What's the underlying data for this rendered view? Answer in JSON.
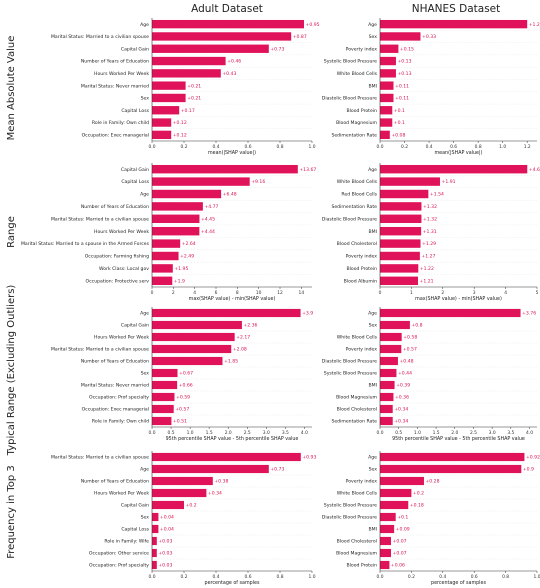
{
  "col_titles": [
    "Adult Dataset",
    "NHANES Dataset"
  ],
  "row_titles": [
    "Mean Absolute Value",
    "Range",
    "Typical Range (Excluding Outliers)",
    "Frequency in Top 3"
  ],
  "colors": {
    "bar": "#e0125a",
    "value_text": "#d8134f",
    "grid": "#e8e8e8"
  },
  "chart_data": [
    {
      "type": "bar",
      "orientation": "horizontal",
      "dataset": "Adult Dataset",
      "metric": "Mean Absolute Value",
      "categories": [
        "Age",
        "Marital Status: Married to a civilian spouse",
        "Capital Gain",
        "Number of Years of Education",
        "Hours Worked Per Week",
        "Marital Status: Never married",
        "Sex",
        "Capital Loss",
        "Role in Family: Own child",
        "Occupation: Exec managerial"
      ],
      "values": [
        0.95,
        0.87,
        0.73,
        0.46,
        0.43,
        0.21,
        0.21,
        0.17,
        0.12,
        0.12
      ],
      "value_labels": [
        "+0.95",
        "+0.87",
        "+0.73",
        "+0.46",
        "+0.43",
        "+0.21",
        "+0.21",
        "+0.17",
        "+0.12",
        "+0.12"
      ],
      "xlabel": "mean(|SHAP value|)",
      "xlim": [
        0,
        1.0
      ],
      "xticks": [
        0.0,
        0.2,
        0.4,
        0.6,
        0.8,
        1.0
      ],
      "xtick_labels": [
        "0.0",
        "0.2",
        "0.4",
        "0.6",
        "0.8",
        "1.0"
      ]
    },
    {
      "type": "bar",
      "orientation": "horizontal",
      "dataset": "NHANES Dataset",
      "metric": "Mean Absolute Value",
      "categories": [
        "Age",
        "Sex",
        "Poverty index",
        "Systolic Blood Pressure",
        "White Blood Cells",
        "BMI",
        "Diastolic Blood Pressure",
        "Blood Protein",
        "Blood Magnesium",
        "Sedimentation Rate"
      ],
      "values": [
        1.2,
        0.33,
        0.15,
        0.13,
        0.13,
        0.11,
        0.11,
        0.1,
        0.1,
        0.08
      ],
      "value_labels": [
        "+1.2",
        "+0.33",
        "+0.15",
        "+0.13",
        "+0.13",
        "+0.11",
        "+0.11",
        "+0.1",
        "+0.1",
        "+0.08"
      ],
      "xlabel": "mean(|SHAP value|)",
      "xlim": [
        0,
        1.28
      ],
      "xticks": [
        0.0,
        0.2,
        0.4,
        0.6,
        0.8,
        1.0,
        1.2
      ],
      "xtick_labels": [
        "0.0",
        "0.2",
        "0.4",
        "0.6",
        "0.8",
        "1.0",
        "1.2"
      ]
    },
    {
      "type": "bar",
      "orientation": "horizontal",
      "dataset": "Adult Dataset",
      "metric": "Range",
      "categories": [
        "Capital Gain",
        "Capital Loss",
        "Age",
        "Number of Years of Education",
        "Marital Status: Married to a civilian spouse",
        "Hours Worked Per Week",
        "Marital Status: Married to a spouse in the Armed Forces",
        "Occupation: Farming fishing",
        "Work Class: Local gov",
        "Occupation: Protective serv"
      ],
      "values": [
        13.67,
        9.16,
        6.48,
        4.77,
        4.45,
        4.44,
        2.64,
        2.49,
        1.95,
        1.9
      ],
      "value_labels": [
        "+13.67",
        "+9.16",
        "+6.48",
        "+4.77",
        "+4.45",
        "+4.44",
        "+2.64",
        "+2.49",
        "+1.95",
        "+1.9"
      ],
      "xlabel": "max(SHAP value) - min(SHAP value)",
      "xlim": [
        0,
        15
      ],
      "xticks": [
        0,
        2,
        4,
        6,
        8,
        10,
        12,
        14
      ],
      "xtick_labels": [
        "0",
        "2",
        "4",
        "6",
        "8",
        "10",
        "12",
        "14"
      ]
    },
    {
      "type": "bar",
      "orientation": "horizontal",
      "dataset": "NHANES Dataset",
      "metric": "Range",
      "categories": [
        "Age",
        "White Blood Cells",
        "Red Blood Cells",
        "Sedimentation Rate",
        "Diastolic Blood Pressure",
        "BMI",
        "Blood Cholesterol",
        "Poverty index",
        "Blood Protein",
        "Blood Albumin"
      ],
      "values": [
        4.69,
        1.91,
        1.54,
        1.32,
        1.32,
        1.31,
        1.29,
        1.27,
        1.22,
        1.21
      ],
      "value_labels": [
        "+4.69",
        "+1.91",
        "+1.54",
        "+1.32",
        "+1.32",
        "+1.31",
        "+1.29",
        "+1.27",
        "+1.22",
        "+1.21"
      ],
      "xlabel": "max(SHAP value) - min(SHAP value)",
      "xlim": [
        0,
        5
      ],
      "xticks": [
        0,
        1,
        2,
        3,
        4,
        5
      ],
      "xtick_labels": [
        "0",
        "1",
        "2",
        "3",
        "4",
        "5"
      ]
    },
    {
      "type": "bar",
      "orientation": "horizontal",
      "dataset": "Adult Dataset",
      "metric": "Typical Range (Excluding Outliers)",
      "categories": [
        "Age",
        "Capital Gain",
        "Hours Worked Per Week",
        "Marital Status: Married to a civilian spouse",
        "Number of Years of Education",
        "Sex",
        "Marital Status: Never married",
        "Occupation: Prof specialty",
        "Occupation: Exec managerial",
        "Role in Family: Own child"
      ],
      "values": [
        3.9,
        2.36,
        2.17,
        2.08,
        1.85,
        0.67,
        0.66,
        0.59,
        0.57,
        0.51
      ],
      "value_labels": [
        "+3.9",
        "+2.36",
        "+2.17",
        "+2.08",
        "+1.85",
        "+0.67",
        "+0.66",
        "+0.59",
        "+0.57",
        "+0.51"
      ],
      "xlabel": "95th percentile SHAP value - 5th percentile SHAP value",
      "xlim": [
        0,
        4.2
      ],
      "xticks": [
        0.0,
        0.5,
        1.0,
        1.5,
        2.0,
        2.5,
        3.0,
        3.5,
        4.0
      ],
      "xtick_labels": [
        "0.0",
        "0.5",
        "1.0",
        "1.5",
        "2.0",
        "2.5",
        "3.0",
        "3.5",
        "4.0"
      ]
    },
    {
      "type": "bar",
      "orientation": "horizontal",
      "dataset": "NHANES Dataset",
      "metric": "Typical Range (Excluding Outliers)",
      "categories": [
        "Age",
        "Sex",
        "White Blood Cells",
        "Poverty index",
        "Diastolic Blood Pressure",
        "Systolic Blood Pressure",
        "BMI",
        "Blood Magnesium",
        "Blood Cholesterol",
        "Sedimentation Rate"
      ],
      "values": [
        3.76,
        0.8,
        0.58,
        0.57,
        0.48,
        0.44,
        0.39,
        0.36,
        0.34,
        0.34
      ],
      "value_labels": [
        "+3.76",
        "+0.8",
        "+0.58",
        "+0.57",
        "+0.48",
        "+0.44",
        "+0.39",
        "+0.36",
        "+0.34",
        "+0.34"
      ],
      "xlabel": "95th percentile SHAP value - 5th percentile SHAP value",
      "xlim": [
        0,
        4.2
      ],
      "xticks": [
        0.0,
        0.5,
        1.0,
        1.5,
        2.0,
        2.5,
        3.0,
        3.5,
        4.0
      ],
      "xtick_labels": [
        "0.0",
        "0.5",
        "1.0",
        "1.5",
        "2.0",
        "2.5",
        "3.0",
        "3.5",
        "4.0"
      ]
    },
    {
      "type": "bar",
      "orientation": "horizontal",
      "dataset": "Adult Dataset",
      "metric": "Frequency in Top 3",
      "categories": [
        "Marital Status: Married to a civilian spouse",
        "Age",
        "Number of Years of Education",
        "Hours Worked Per Week",
        "Capital Gain",
        "Sex",
        "Capital Loss",
        "Role in Family: Wife",
        "Occupation: Other service",
        "Occupation: Prof specialty"
      ],
      "values": [
        0.93,
        0.73,
        0.38,
        0.34,
        0.2,
        0.04,
        0.04,
        0.03,
        0.03,
        0.03
      ],
      "value_labels": [
        "+0.93",
        "+0.73",
        "+0.38",
        "+0.34",
        "+0.2",
        "+0.04",
        "+0.04",
        "+0.03",
        "+0.03",
        "+0.03"
      ],
      "xlabel": "percentage of samples",
      "xlim": [
        0,
        1.0
      ],
      "xticks": [
        0.0,
        0.2,
        0.4,
        0.6,
        0.8,
        1.0
      ],
      "xtick_labels": [
        "0.0",
        "0.2",
        "0.4",
        "0.6",
        "0.8",
        "1.0"
      ]
    },
    {
      "type": "bar",
      "orientation": "horizontal",
      "dataset": "NHANES Dataset",
      "metric": "Frequency in Top 3",
      "categories": [
        "Age",
        "Sex",
        "Poverty index",
        "White Blood Cells",
        "Systolic Blood Pressure",
        "Diastolic Blood Pressure",
        "BMI",
        "Blood Cholesterol",
        "Blood Magnesium",
        "Blood Protein"
      ],
      "values": [
        0.92,
        0.9,
        0.28,
        0.2,
        0.18,
        0.1,
        0.09,
        0.07,
        0.07,
        0.06
      ],
      "value_labels": [
        "+0.92",
        "+0.9",
        "+0.28",
        "+0.2",
        "+0.18",
        "+0.1",
        "+0.09",
        "+0.07",
        "+0.07",
        "+0.06"
      ],
      "xlabel": "percentage of samples",
      "xlim": [
        0,
        1.0
      ],
      "xticks": [
        0.0,
        0.2,
        0.4,
        0.6,
        0.8,
        1.0
      ],
      "xtick_labels": [
        "0.0",
        "0.2",
        "0.4",
        "0.6",
        "0.8",
        "1.0"
      ]
    }
  ]
}
